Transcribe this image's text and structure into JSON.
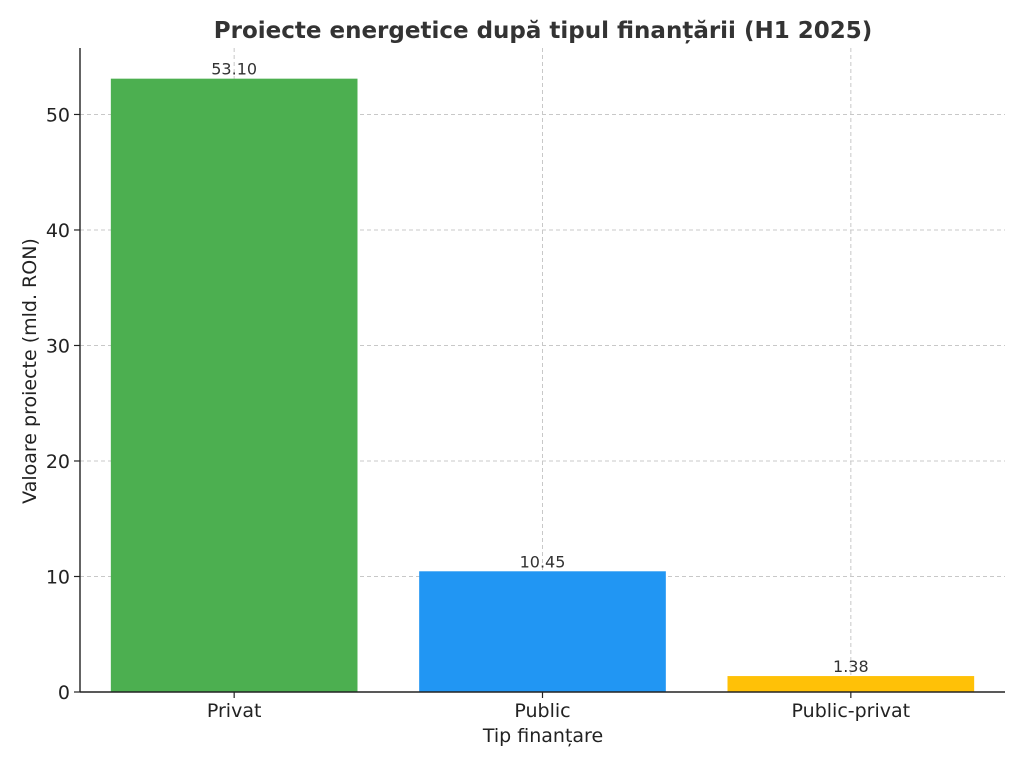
{
  "chart_data": {
    "type": "bar",
    "title": "Proiecte energetice după tipul finanțării (H1 2025)",
    "xlabel": "Tip finanțare",
    "ylabel": "Valoare proiecte (mld. RON)",
    "categories": [
      "Privat",
      "Public",
      "Public-privat"
    ],
    "values": [
      53.1,
      10.45,
      1.38
    ],
    "value_labels": [
      "53.10",
      "10.45",
      "1.38"
    ],
    "colors": [
      "#4caf50",
      "#2196f3",
      "#ffc107"
    ],
    "ylim": [
      0,
      55.755
    ],
    "yticks": [
      0,
      10,
      20,
      30,
      40,
      50
    ],
    "grid": true,
    "legend": "none"
  }
}
